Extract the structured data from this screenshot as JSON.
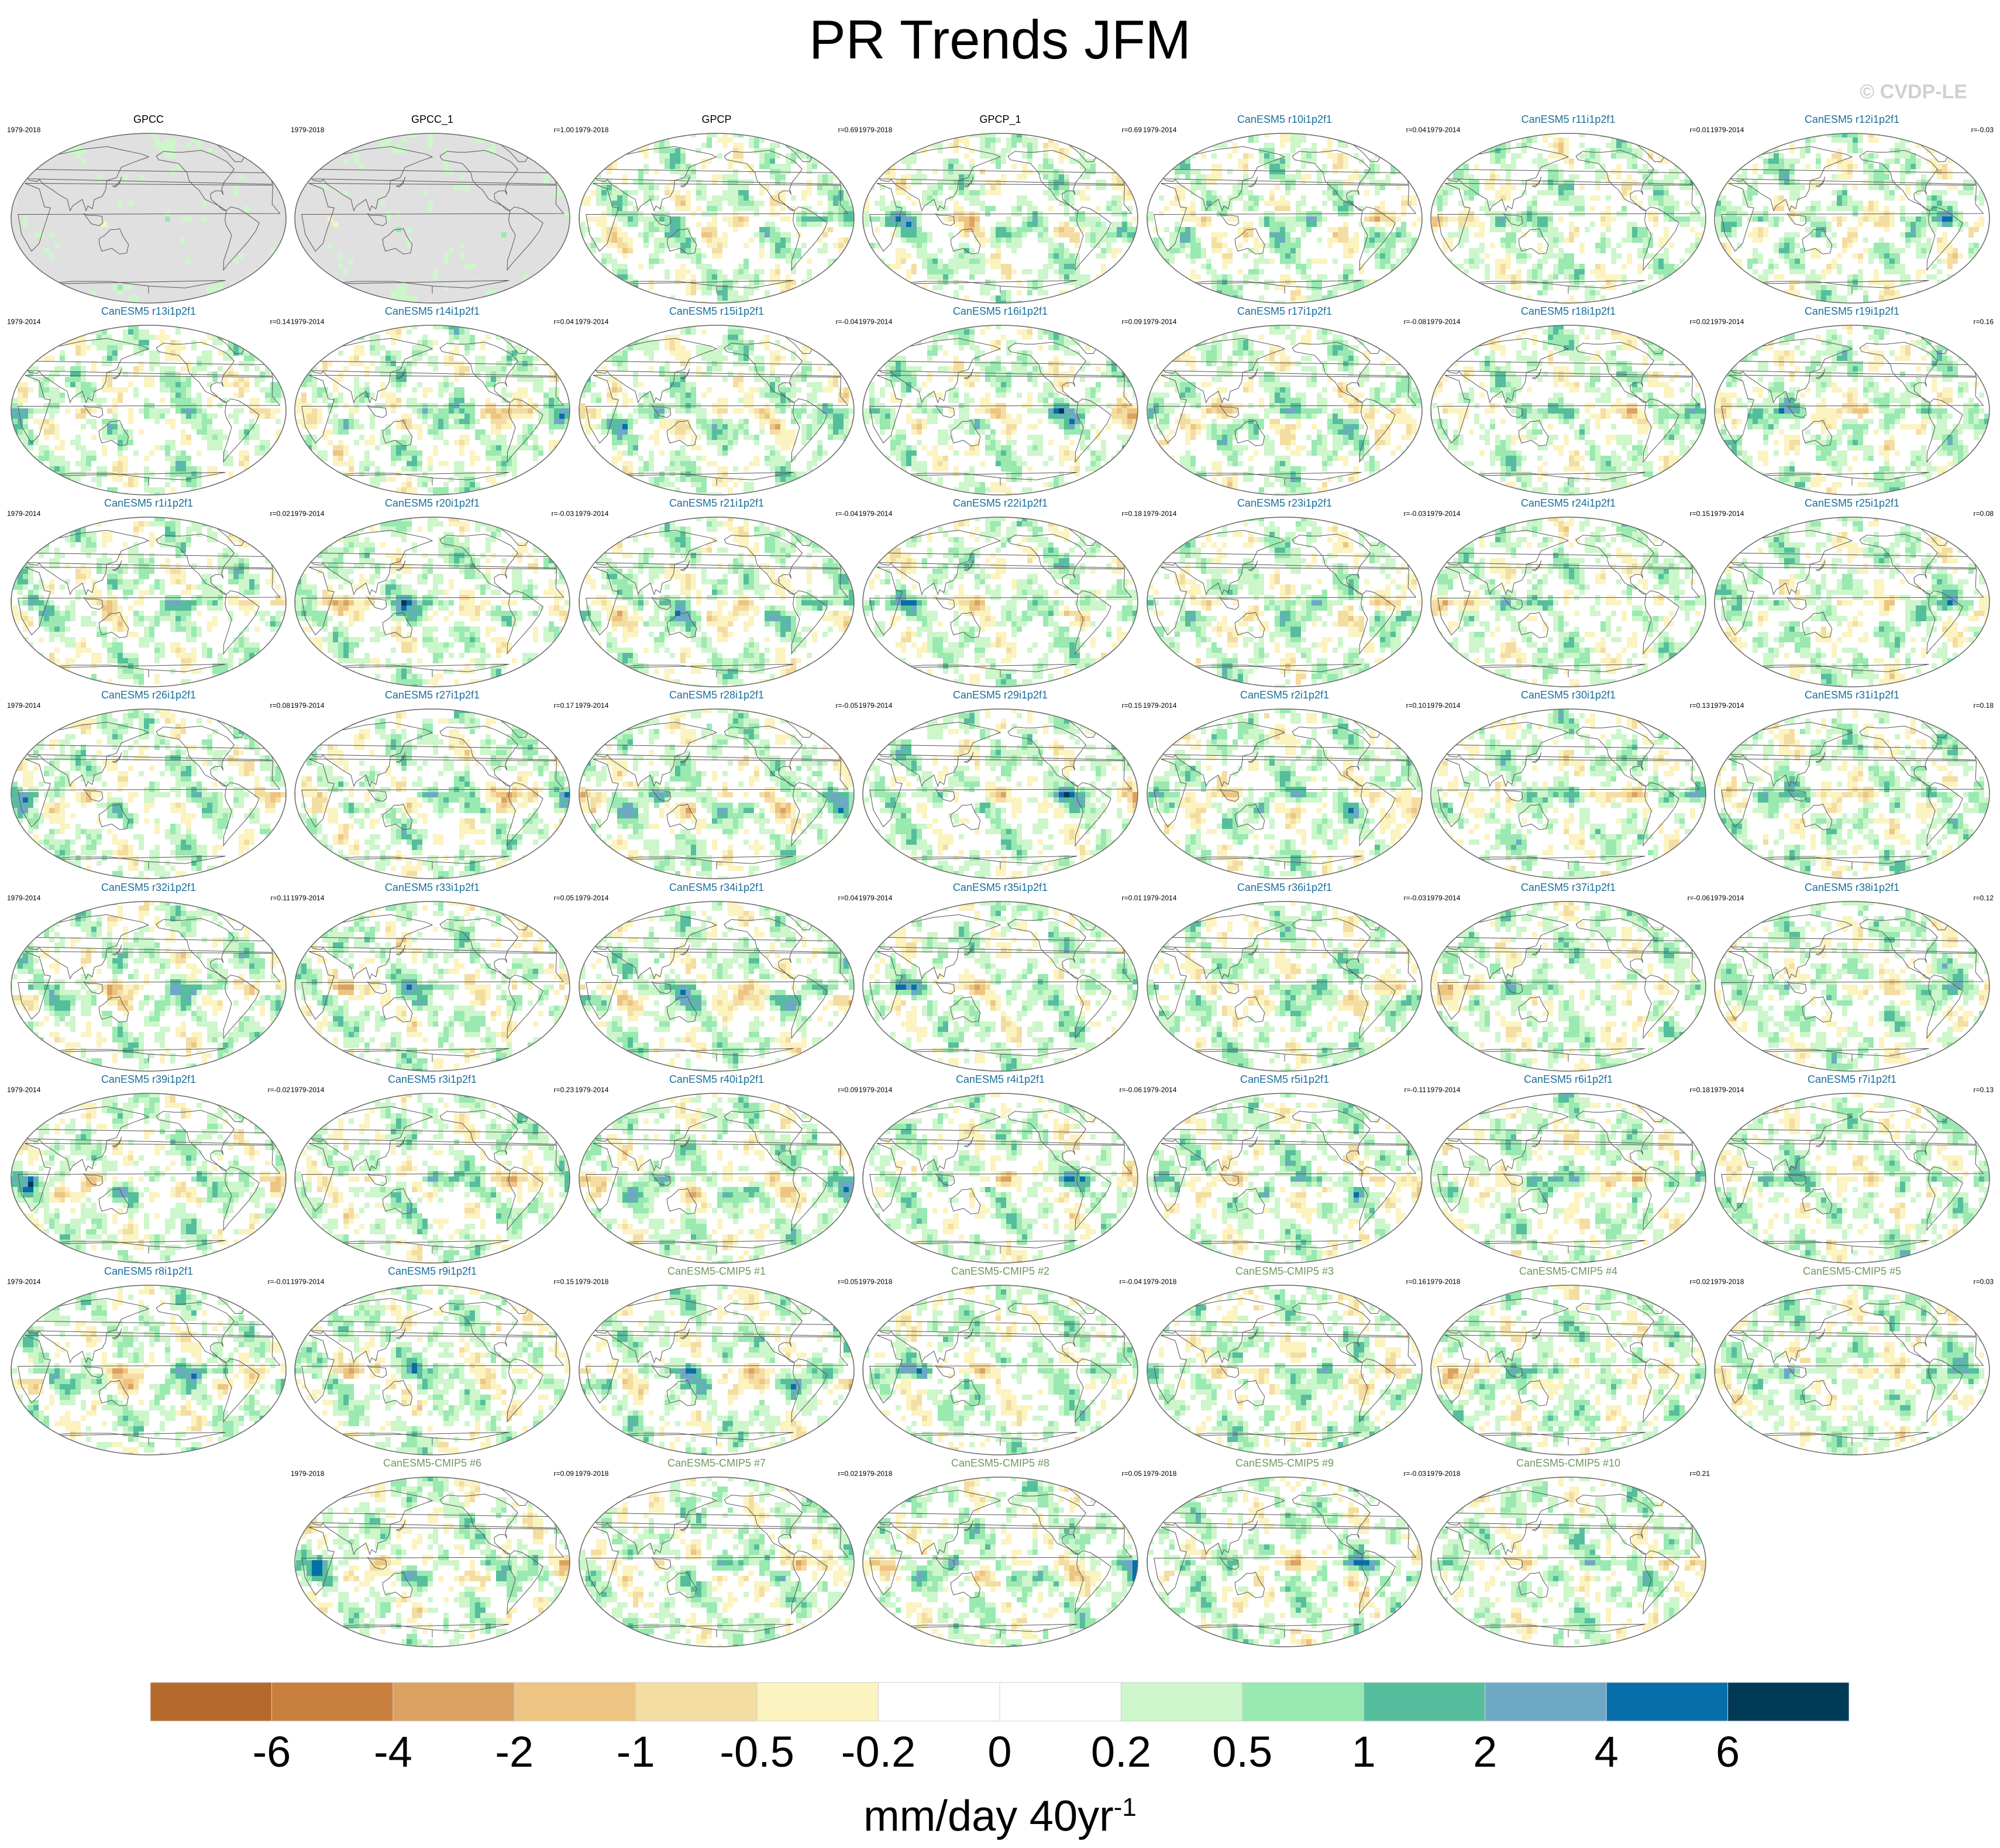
{
  "chart_data": {
    "type": "heatmap",
    "title": "PR Trends JFM",
    "copyright": "© CVDP-LE",
    "colorbar": {
      "tick_labels": [
        "-6",
        "-4",
        "-2",
        "-1",
        "-0.5",
        "-0.2",
        "0",
        "0.2",
        "0.5",
        "1",
        "2",
        "4",
        "6"
      ],
      "units": "mm/day 40yr",
      "units_superscript": "-1",
      "colors": [
        "#b5692b",
        "#c97f3d",
        "#dba261",
        "#eec483",
        "#f4dda2",
        "#fbf3c0",
        "#ffffff",
        "#ffffff",
        "#cdf6cb",
        "#99e9b1",
        "#56be9d",
        "#6ea8c5",
        "#086ea9",
        "#013a57"
      ]
    },
    "panels": [
      {
        "title": "GPCC",
        "period": "1979-2018",
        "corr": "",
        "color": "#000000",
        "kind": "obs-land"
      },
      {
        "title": "GPCC_1",
        "period": "1979-2018",
        "corr": "r=1.00",
        "color": "#000000",
        "kind": "obs-land"
      },
      {
        "title": "GPCP",
        "period": "1979-2018",
        "corr": "r=0.69",
        "color": "#000000",
        "kind": "obs"
      },
      {
        "title": "GPCP_1",
        "period": "1979-2018",
        "corr": "r=0.69",
        "color": "#000000",
        "kind": "obs"
      },
      {
        "title": "CanESM5 r10i1p2f1",
        "period": "1979-2014",
        "corr": "r=0.04",
        "color": "#1b6f9a",
        "kind": "model"
      },
      {
        "title": "CanESM5 r11i1p2f1",
        "period": "1979-2014",
        "corr": "r=0.01",
        "color": "#1b6f9a",
        "kind": "model"
      },
      {
        "title": "CanESM5 r12i1p2f1",
        "period": "1979-2014",
        "corr": "r=-0.03",
        "color": "#1b6f9a",
        "kind": "model"
      },
      {
        "title": "CanESM5 r13i1p2f1",
        "period": "1979-2014",
        "corr": "r=0.14",
        "color": "#1b6f9a",
        "kind": "model"
      },
      {
        "title": "CanESM5 r14i1p2f1",
        "period": "1979-2014",
        "corr": "r=0.04",
        "color": "#1b6f9a",
        "kind": "model"
      },
      {
        "title": "CanESM5 r15i1p2f1",
        "period": "1979-2014",
        "corr": "r=-0.04",
        "color": "#1b6f9a",
        "kind": "model"
      },
      {
        "title": "CanESM5 r16i1p2f1",
        "period": "1979-2014",
        "corr": "r=0.09",
        "color": "#1b6f9a",
        "kind": "model"
      },
      {
        "title": "CanESM5 r17i1p2f1",
        "period": "1979-2014",
        "corr": "r=-0.08",
        "color": "#1b6f9a",
        "kind": "model"
      },
      {
        "title": "CanESM5 r18i1p2f1",
        "period": "1979-2014",
        "corr": "r=0.02",
        "color": "#1b6f9a",
        "kind": "model"
      },
      {
        "title": "CanESM5 r19i1p2f1",
        "period": "1979-2014",
        "corr": "r=0.16",
        "color": "#1b6f9a",
        "kind": "model"
      },
      {
        "title": "CanESM5 r1i1p2f1",
        "period": "1979-2014",
        "corr": "r=0.02",
        "color": "#1b6f9a",
        "kind": "model"
      },
      {
        "title": "CanESM5 r20i1p2f1",
        "period": "1979-2014",
        "corr": "r=-0.03",
        "color": "#1b6f9a",
        "kind": "model"
      },
      {
        "title": "CanESM5 r21i1p2f1",
        "period": "1979-2014",
        "corr": "r=-0.04",
        "color": "#1b6f9a",
        "kind": "model"
      },
      {
        "title": "CanESM5 r22i1p2f1",
        "period": "1979-2014",
        "corr": "r=0.18",
        "color": "#1b6f9a",
        "kind": "model"
      },
      {
        "title": "CanESM5 r23i1p2f1",
        "period": "1979-2014",
        "corr": "r=-0.03",
        "color": "#1b6f9a",
        "kind": "model"
      },
      {
        "title": "CanESM5 r24i1p2f1",
        "period": "1979-2014",
        "corr": "r=0.15",
        "color": "#1b6f9a",
        "kind": "model"
      },
      {
        "title": "CanESM5 r25i1p2f1",
        "period": "1979-2014",
        "corr": "r=0.08",
        "color": "#1b6f9a",
        "kind": "model"
      },
      {
        "title": "CanESM5 r26i1p2f1",
        "period": "1979-2014",
        "corr": "r=0.08",
        "color": "#1b6f9a",
        "kind": "model"
      },
      {
        "title": "CanESM5 r27i1p2f1",
        "period": "1979-2014",
        "corr": "r=0.17",
        "color": "#1b6f9a",
        "kind": "model"
      },
      {
        "title": "CanESM5 r28i1p2f1",
        "period": "1979-2014",
        "corr": "r=-0.05",
        "color": "#1b6f9a",
        "kind": "model"
      },
      {
        "title": "CanESM5 r29i1p2f1",
        "period": "1979-2014",
        "corr": "r=0.15",
        "color": "#1b6f9a",
        "kind": "model"
      },
      {
        "title": "CanESM5 r2i1p2f1",
        "period": "1979-2014",
        "corr": "r=0.10",
        "color": "#1b6f9a",
        "kind": "model"
      },
      {
        "title": "CanESM5 r30i1p2f1",
        "period": "1979-2014",
        "corr": "r=0.13",
        "color": "#1b6f9a",
        "kind": "model"
      },
      {
        "title": "CanESM5 r31i1p2f1",
        "period": "1979-2014",
        "corr": "r=0.18",
        "color": "#1b6f9a",
        "kind": "model"
      },
      {
        "title": "CanESM5 r32i1p2f1",
        "period": "1979-2014",
        "corr": "r=0.11",
        "color": "#1b6f9a",
        "kind": "model"
      },
      {
        "title": "CanESM5 r33i1p2f1",
        "period": "1979-2014",
        "corr": "r=0.05",
        "color": "#1b6f9a",
        "kind": "model"
      },
      {
        "title": "CanESM5 r34i1p2f1",
        "period": "1979-2014",
        "corr": "r=0.04",
        "color": "#1b6f9a",
        "kind": "model"
      },
      {
        "title": "CanESM5 r35i1p2f1",
        "period": "1979-2014",
        "corr": "r=0.01",
        "color": "#1b6f9a",
        "kind": "model"
      },
      {
        "title": "CanESM5 r36i1p2f1",
        "period": "1979-2014",
        "corr": "r=-0.03",
        "color": "#1b6f9a",
        "kind": "model"
      },
      {
        "title": "CanESM5 r37i1p2f1",
        "period": "1979-2014",
        "corr": "r=-0.06",
        "color": "#1b6f9a",
        "kind": "model"
      },
      {
        "title": "CanESM5 r38i1p2f1",
        "period": "1979-2014",
        "corr": "r=0.12",
        "color": "#1b6f9a",
        "kind": "model"
      },
      {
        "title": "CanESM5 r39i1p2f1",
        "period": "1979-2014",
        "corr": "r=-0.02",
        "color": "#1b6f9a",
        "kind": "model"
      },
      {
        "title": "CanESM5 r3i1p2f1",
        "period": "1979-2014",
        "corr": "r=0.23",
        "color": "#1b6f9a",
        "kind": "model"
      },
      {
        "title": "CanESM5 r40i1p2f1",
        "period": "1979-2014",
        "corr": "r=0.09",
        "color": "#1b6f9a",
        "kind": "model"
      },
      {
        "title": "CanESM5 r4i1p2f1",
        "period": "1979-2014",
        "corr": "r=-0.06",
        "color": "#1b6f9a",
        "kind": "model"
      },
      {
        "title": "CanESM5 r5i1p2f1",
        "period": "1979-2014",
        "corr": "r=-0.11",
        "color": "#1b6f9a",
        "kind": "model"
      },
      {
        "title": "CanESM5 r6i1p2f1",
        "period": "1979-2014",
        "corr": "r=0.18",
        "color": "#1b6f9a",
        "kind": "model"
      },
      {
        "title": "CanESM5 r7i1p2f1",
        "period": "1979-2014",
        "corr": "r=0.13",
        "color": "#1b6f9a",
        "kind": "model"
      },
      {
        "title": "CanESM5 r8i1p2f1",
        "period": "1979-2014",
        "corr": "r=-0.01",
        "color": "#1b6f9a",
        "kind": "model"
      },
      {
        "title": "CanESM5 r9i1p2f1",
        "period": "1979-2014",
        "corr": "r=0.15",
        "color": "#1b6f9a",
        "kind": "model"
      },
      {
        "title": "CanESM5-CMIP5 #1",
        "period": "1979-2018",
        "corr": "r=0.05",
        "color": "#6e9a5d",
        "kind": "model"
      },
      {
        "title": "CanESM5-CMIP5 #2",
        "period": "1979-2018",
        "corr": "r=-0.04",
        "color": "#6e9a5d",
        "kind": "model"
      },
      {
        "title": "CanESM5-CMIP5 #3",
        "period": "1979-2018",
        "corr": "r=0.16",
        "color": "#6e9a5d",
        "kind": "model"
      },
      {
        "title": "CanESM5-CMIP5 #4",
        "period": "1979-2018",
        "corr": "r=0.02",
        "color": "#6e9a5d",
        "kind": "model"
      },
      {
        "title": "CanESM5-CMIP5 #5",
        "period": "1979-2018",
        "corr": "r=0.03",
        "color": "#6e9a5d",
        "kind": "model"
      },
      {
        "title": "CanESM5-CMIP5 #6",
        "period": "1979-2018",
        "corr": "r=0.09",
        "color": "#6e9a5d",
        "kind": "model"
      },
      {
        "title": "CanESM5-CMIP5 #7",
        "period": "1979-2018",
        "corr": "r=0.02",
        "color": "#6e9a5d",
        "kind": "model"
      },
      {
        "title": "CanESM5-CMIP5 #8",
        "period": "1979-2018",
        "corr": "r=0.05",
        "color": "#6e9a5d",
        "kind": "model"
      },
      {
        "title": "CanESM5-CMIP5 #9",
        "period": "1979-2018",
        "corr": "r=-0.03",
        "color": "#6e9a5d",
        "kind": "model"
      },
      {
        "title": "CanESM5-CMIP5 #10",
        "period": "1979-2018",
        "corr": "r=0.21",
        "color": "#6e9a5d",
        "kind": "model"
      }
    ]
  }
}
